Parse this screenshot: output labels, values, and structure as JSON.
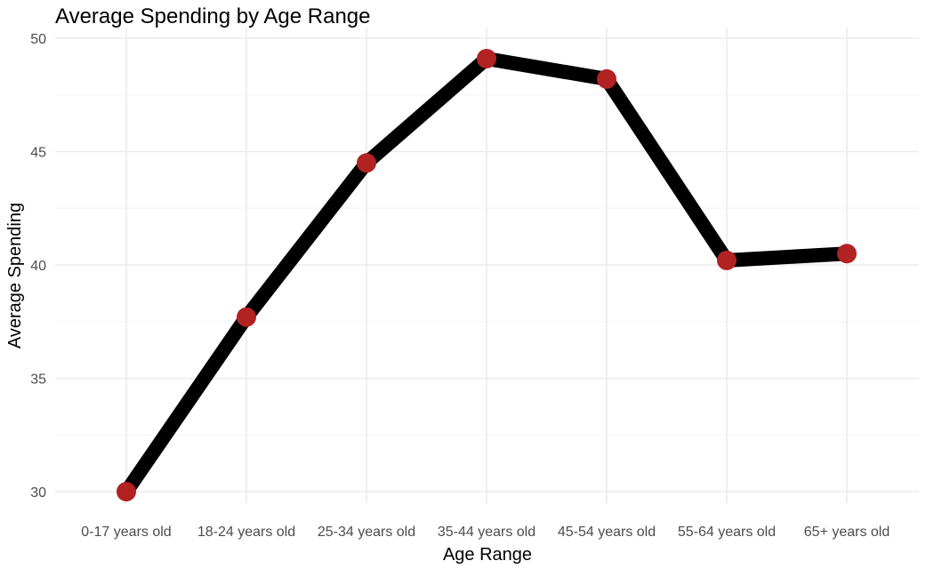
{
  "chart_data": {
    "type": "line",
    "title": "Average Spending by Age Range",
    "xlabel": "Age Range",
    "ylabel": "Average Spending",
    "categories": [
      "0-17 years old",
      "18-24 years old",
      "25-34 years old",
      "35-44 years old",
      "45-54 years old",
      "55-64 years old",
      "65+ years old"
    ],
    "series": [
      {
        "values": [
          30.0,
          37.7,
          44.5,
          49.1,
          48.2,
          40.2,
          40.5
        ]
      }
    ],
    "ylim": [
      29.5,
      50.0
    ],
    "yticks": [
      30,
      35,
      40,
      45,
      50
    ],
    "grid": true,
    "legend": "none",
    "line_color": "#000000",
    "point_color": "#b22222"
  }
}
